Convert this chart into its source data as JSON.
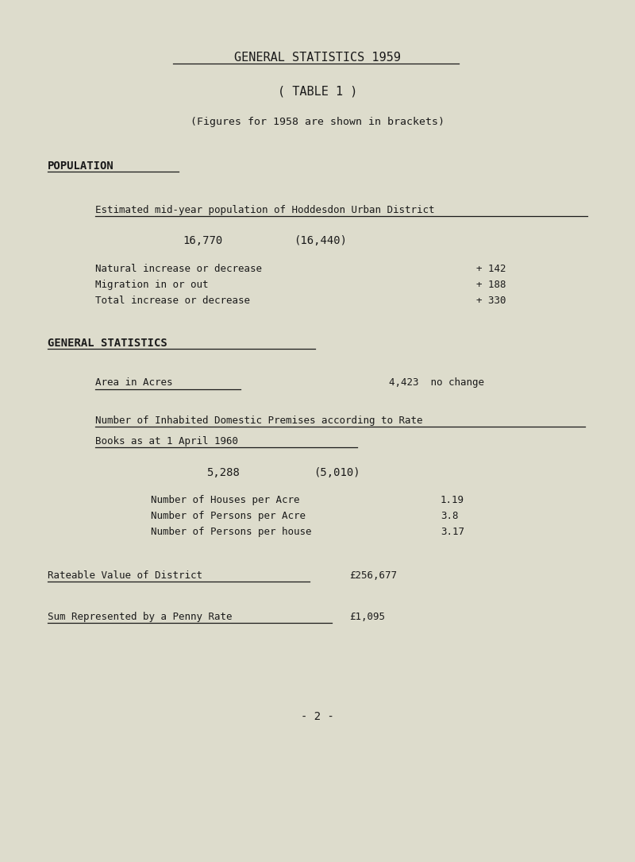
{
  "bg_color": "#dddccc",
  "text_color": "#1a1a1a",
  "title1": "GENERAL STATISTICS 1959",
  "title2": "( TABLE 1 )",
  "title3": "(Figures for 1958 are shown in brackets)",
  "section1_header": "POPULATION",
  "pop_label": "Estimated mid-year population of Hoddesdon Urban District",
  "pop_value": "16,770",
  "pop_bracket": "(16,440)",
  "nat_label": "Natural increase or decrease",
  "nat_value": "+  142",
  "mig_label": "Migration in or out",
  "mig_value": "+  188",
  "tot_label": "Total increase or decrease",
  "tot_value": "+  330",
  "section2_header": "GENERAL STATISTICS",
  "area_label": "Area in Acres",
  "area_value": "4,423  no change",
  "premises_label1": "Number of Inhabited Domestic Premises according to Rate",
  "premises_label2": "Books as at 1 April 1960",
  "premises_value": "5,288",
  "premises_bracket": "(5,010)",
  "houses_label": "Number of Houses per Acre",
  "houses_value": "1.19",
  "persons_acre_label": "Number of Persons per Acre",
  "persons_acre_value": "3.8",
  "persons_house_label": "Number of Persons per house",
  "persons_house_value": "3.17",
  "rateable_label": "Rateable Value of District",
  "rateable_value": "£256,677",
  "penny_label": "Sum Represented by a Penny Rate",
  "penny_value": "£1,095",
  "page_number": "- 2 -",
  "font_size_title": 11,
  "font_size_section": 10,
  "font_size_body": 9,
  "font_size_large": 10,
  "font_size_page": 10
}
